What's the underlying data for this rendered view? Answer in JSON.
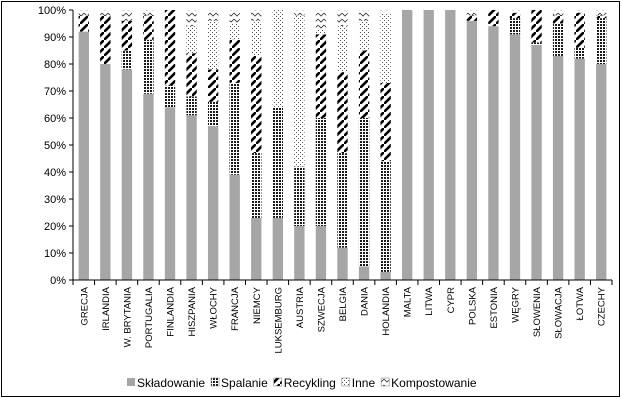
{
  "chart_data": {
    "type": "bar",
    "stacked": true,
    "categories": [
      "GRECJA",
      "IRLANDIA",
      "W. BRYTANIA",
      "PORTUGALIA",
      "FINLANDIA",
      "HISZPANIA",
      "WŁOCHY",
      "FRANCJA",
      "NIEMCY",
      "LUKSEMBURG",
      "AUSTRIA",
      "SZWECJA",
      "BELGIA",
      "DANIA",
      "HOLANDIA",
      "MALTA",
      "LITWA",
      "CYPR",
      "POLSKA",
      "ESTONIA",
      "WĘGRY",
      "SŁOWENIA",
      "SŁOWACJA",
      "ŁOTWA",
      "CZECHY"
    ],
    "series": [
      {
        "name": "Składowanie",
        "color": "#a6a6a6",
        "pattern": "solid",
        "values": [
          92,
          80,
          78,
          69,
          64,
          61,
          57,
          39,
          23,
          23,
          20,
          20,
          12,
          5,
          3,
          100,
          100,
          100,
          96,
          94,
          91,
          87,
          83,
          82,
          80
        ]
      },
      {
        "name": "Spalanie",
        "color": "#1a1a1a",
        "pattern": "dots",
        "values": [
          0,
          0,
          7,
          20,
          8,
          7,
          9,
          34,
          24,
          41,
          22,
          40,
          35,
          55,
          41,
          0,
          0,
          0,
          0,
          0,
          6,
          1,
          12,
          4,
          17
        ]
      },
      {
        "name": "Recykling",
        "color": "#000000",
        "pattern": "diagonal",
        "values": [
          6,
          18,
          11,
          9,
          28,
          16,
          12,
          16,
          36,
          0,
          0,
          31,
          30,
          25,
          29,
          0,
          0,
          0,
          2,
          6,
          2,
          12,
          3,
          13,
          1
        ]
      },
      {
        "name": "Inne",
        "color": "#666666",
        "pattern": "sparse-dots",
        "values": [
          0,
          0,
          0,
          0,
          0,
          10,
          18,
          6,
          13,
          36,
          56,
          2,
          17,
          11,
          26,
          0,
          0,
          0,
          0,
          0,
          0,
          0,
          0,
          0,
          0
        ]
      },
      {
        "name": "Kompostowanie",
        "color": "#000000",
        "pattern": "checker",
        "values": [
          2,
          2,
          4,
          2,
          0,
          6,
          4,
          5,
          4,
          0,
          2,
          7,
          6,
          4,
          1,
          0,
          0,
          0,
          2,
          0,
          1,
          0,
          2,
          1,
          2
        ]
      }
    ],
    "ylim": [
      0,
      100
    ],
    "yticks": [
      "0%",
      "10%",
      "20%",
      "30%",
      "40%",
      "50%",
      "60%",
      "70%",
      "80%",
      "90%",
      "100%"
    ],
    "legend_position": "bottom",
    "grid": false
  }
}
